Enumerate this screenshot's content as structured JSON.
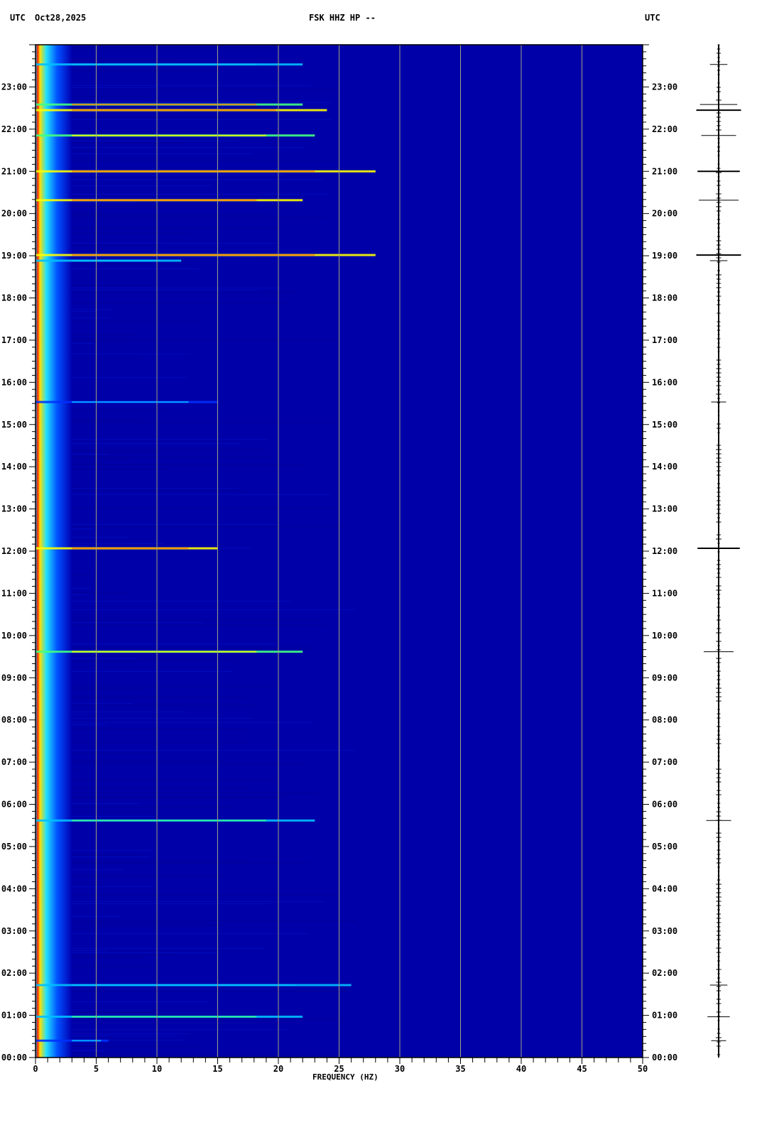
{
  "header": {
    "left_tz": "UTC",
    "date": "Oct28,2025",
    "station": "FSK HHZ HP --",
    "right_tz": "UTC"
  },
  "chart_data": {
    "type": "heatmap",
    "xlabel": "FREQUENCY (HZ)",
    "ylabel": "",
    "xlim": [
      0,
      50
    ],
    "ylim_hours": [
      0,
      24
    ],
    "x_ticks": [
      "0",
      "5",
      "10",
      "15",
      "20",
      "25",
      "30",
      "35",
      "40",
      "45",
      "50"
    ],
    "y_ticks": [
      "00:00",
      "01:00",
      "02:00",
      "03:00",
      "04:00",
      "05:00",
      "06:00",
      "07:00",
      "08:00",
      "09:00",
      "10:00",
      "11:00",
      "12:00",
      "13:00",
      "14:00",
      "15:00",
      "16:00",
      "17:00",
      "18:00",
      "19:00",
      "20:00",
      "21:00",
      "22:00",
      "23:00"
    ],
    "gridlines_hz": [
      5,
      10,
      15,
      20,
      25,
      30,
      35,
      40,
      45
    ],
    "colormap": [
      "#0000a0",
      "#0030ff",
      "#00c0ff",
      "#40ff80",
      "#ffff00",
      "#ff8000",
      "#c00000"
    ],
    "background_color": "#0000a8",
    "gridline_color": "#a0a080",
    "events": [
      {
        "time": "23:32",
        "fmax": 22,
        "intensity": 0.35
      },
      {
        "time": "22:35",
        "fmax": 22,
        "intensity": 0.75
      },
      {
        "time": "22:27",
        "fmax": 24,
        "intensity": 0.9
      },
      {
        "time": "21:51",
        "fmax": 23,
        "intensity": 0.7
      },
      {
        "time": "21:00",
        "fmax": 28,
        "intensity": 0.85
      },
      {
        "time": "20:19",
        "fmax": 22,
        "intensity": 0.8
      },
      {
        "time": "19:01",
        "fmax": 28,
        "intensity": 0.9
      },
      {
        "time": "18:53",
        "fmax": 12,
        "intensity": 0.35
      },
      {
        "time": "15:32",
        "fmax": 15,
        "intensity": 0.3
      },
      {
        "time": "12:04",
        "fmax": 15,
        "intensity": 0.85
      },
      {
        "time": "09:37",
        "fmax": 22,
        "intensity": 0.6
      },
      {
        "time": "05:37",
        "fmax": 23,
        "intensity": 0.5
      },
      {
        "time": "01:43",
        "fmax": 26,
        "intensity": 0.35
      },
      {
        "time": "00:58",
        "fmax": 22,
        "intensity": 0.45
      },
      {
        "time": "00:24",
        "fmax": 6,
        "intensity": 0.3
      }
    ]
  }
}
